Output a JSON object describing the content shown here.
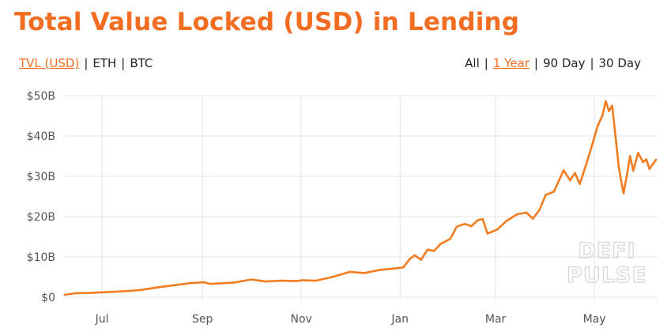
{
  "header": {
    "title": "Total Value Locked (USD) in Lending"
  },
  "unit_toggle": {
    "options": [
      {
        "label": "TVL (USD)",
        "active": true
      },
      {
        "label": "ETH",
        "active": false
      },
      {
        "label": "BTC",
        "active": false
      }
    ]
  },
  "range_toggle": {
    "options": [
      {
        "label": "All",
        "active": false
      },
      {
        "label": "1 Year",
        "active": true
      },
      {
        "label": "90 Day",
        "active": false
      },
      {
        "label": "30 Day",
        "active": false
      }
    ]
  },
  "watermark": [
    "DEFI",
    "PULSE"
  ],
  "colors": {
    "accent": "#f26d21",
    "line": "#f27d21",
    "grid": "#e3e3e3",
    "axis_text": "#555555"
  },
  "chart_data": {
    "type": "line",
    "title": "Total Value Locked (USD) in Lending",
    "xlabel": "",
    "ylabel": "",
    "x_ticks": [
      "Jul",
      "Sep",
      "Nov",
      "Jan",
      "Mar",
      "May"
    ],
    "x_tick_dates": [
      "2020-07-01",
      "2020-09-01",
      "2020-11-01",
      "2021-01-01",
      "2021-03-01",
      "2021-05-01"
    ],
    "xlim": [
      "2020-06-08",
      "2021-06-09"
    ],
    "y_ticks": [
      "$0",
      "$10B",
      "$20B",
      "$30B",
      "$40B",
      "$50B"
    ],
    "y_tick_values": [
      0,
      10,
      20,
      30,
      40,
      50
    ],
    "ylim": [
      0,
      50
    ],
    "y_unit": "billion USD",
    "grid": true,
    "series": [
      {
        "name": "TVL (USD)",
        "x": [
          "2020-06-08",
          "2020-06-15",
          "2020-06-25",
          "2020-07-05",
          "2020-07-15",
          "2020-07-25",
          "2020-08-05",
          "2020-08-15",
          "2020-08-25",
          "2020-09-02",
          "2020-09-06",
          "2020-09-10",
          "2020-09-20",
          "2020-10-01",
          "2020-10-10",
          "2020-10-20",
          "2020-10-28",
          "2020-11-02",
          "2020-11-10",
          "2020-11-20",
          "2020-12-01",
          "2020-12-10",
          "2020-12-20",
          "2020-12-28",
          "2021-01-03",
          "2021-01-07",
          "2021-01-10",
          "2021-01-14",
          "2021-01-18",
          "2021-01-22",
          "2021-01-26",
          "2021-02-01",
          "2021-02-05",
          "2021-02-10",
          "2021-02-14",
          "2021-02-18",
          "2021-02-21",
          "2021-02-24",
          "2021-02-27",
          "2021-03-02",
          "2021-03-08",
          "2021-03-14",
          "2021-03-20",
          "2021-03-24",
          "2021-03-28",
          "2021-04-01",
          "2021-04-06",
          "2021-04-12",
          "2021-04-16",
          "2021-04-19",
          "2021-04-22",
          "2021-04-26",
          "2021-04-30",
          "2021-05-03",
          "2021-05-06",
          "2021-05-08",
          "2021-05-10",
          "2021-05-12",
          "2021-05-14",
          "2021-05-16",
          "2021-05-18",
          "2021-05-19",
          "2021-05-21",
          "2021-05-23",
          "2021-05-25",
          "2021-05-28",
          "2021-05-31",
          "2021-06-02",
          "2021-06-04",
          "2021-06-06",
          "2021-06-08"
        ],
        "values": [
          0.6,
          1.0,
          1.1,
          1.3,
          1.5,
          1.8,
          2.5,
          3.0,
          3.5,
          3.7,
          3.3,
          3.4,
          3.6,
          4.4,
          3.9,
          4.1,
          4.0,
          4.2,
          4.1,
          5.0,
          6.3,
          6.0,
          6.8,
          7.1,
          7.4,
          9.5,
          10.4,
          9.3,
          11.8,
          11.5,
          13.2,
          14.5,
          17.5,
          18.2,
          17.6,
          19.1,
          19.4,
          15.8,
          16.3,
          16.8,
          19.0,
          20.5,
          21.0,
          19.5,
          21.6,
          25.4,
          26.2,
          31.5,
          29.0,
          30.8,
          28.1,
          33.0,
          38.3,
          42.5,
          45.1,
          48.6,
          46.2,
          47.5,
          40.1,
          32.5,
          27.8,
          25.8,
          30.2,
          35.0,
          31.4,
          35.8,
          33.5,
          34.2,
          31.8,
          33.0,
          34.1
        ]
      }
    ]
  }
}
